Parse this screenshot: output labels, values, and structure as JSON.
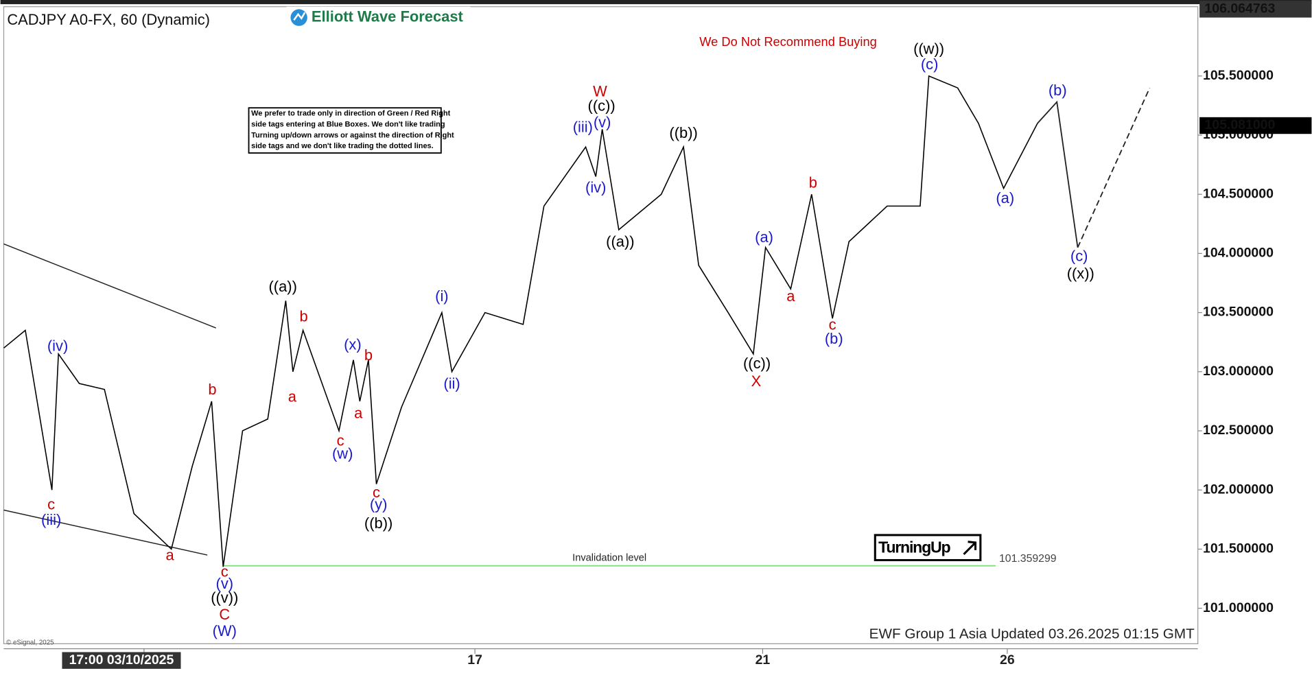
{
  "chart_data": {
    "type": "line",
    "title": "CADJPY A0-FX, 60 (Dynamic)",
    "logo": "Elliott Wave Forecast",
    "warning": "We Do Not Recommend Buying",
    "disclaimer": [
      "We prefer to trade only in direction of Green / Red Right",
      "side tags entering at Blue Boxes. We don't like trading",
      "Turning up/down arrows or against the direction of Right",
      "side tags and we don't like trading the dotted lines."
    ],
    "tag": "TurningUp",
    "footer": "EWF Group 1 Asia Updated 03.26.2025 01:15 GMT",
    "copyright": "© eSignal, 2025",
    "xlim": [
      -1.95,
      14.65
    ],
    "ylim": [
      100.7,
      106.086
    ],
    "xticks": [
      {
        "value": 0,
        "label": "17:00 03/10/2025"
      },
      {
        "value": 4.6,
        "label": "17"
      },
      {
        "value": 8.6,
        "label": "21"
      },
      {
        "value": 12,
        "label": "26"
      }
    ],
    "yticks": [
      {
        "value": 101.0,
        "label": "101.000000"
      },
      {
        "value": 101.5,
        "label": "101.500000"
      },
      {
        "value": 102.0,
        "label": "102.000000"
      },
      {
        "value": 102.5,
        "label": "102.500000"
      },
      {
        "value": 103.0,
        "label": "103.000000"
      },
      {
        "value": 103.5,
        "label": "103.500000"
      },
      {
        "value": 104.0,
        "label": "104.000000"
      },
      {
        "value": 104.5,
        "label": "104.500000"
      },
      {
        "value": 105.0,
        "label": "105.000000"
      },
      {
        "value": 105.5,
        "label": "105.500000"
      }
    ],
    "high_label": 106.064763,
    "last_price": {
      "value": 105.081,
      "label": "105.081000"
    },
    "invalidation": {
      "label": "Invalidation level",
      "value": 101.359299,
      "x": [
        1.1,
        11.84
      ],
      "color": "#7fdc7f"
    },
    "series": [
      {
        "color": "#000000",
        "x": [
          -1.95,
          -1.65,
          -1.28,
          -1.19,
          -0.9,
          -0.55,
          -0.14,
          0.38,
          0.67,
          0.94,
          1.1,
          1.37,
          1.72,
          1.97,
          2.07,
          2.21,
          2.71,
          2.91,
          3.0,
          3.12,
          3.23,
          3.58,
          4.14,
          4.28,
          4.74,
          5.27,
          5.56,
          6.14,
          6.28,
          6.37,
          6.6,
          7.19,
          7.5,
          7.71,
          8.12,
          8.47,
          8.64,
          8.99,
          9.28,
          9.57,
          9.8,
          10.33,
          10.79,
          10.91,
          11.31,
          11.6,
          11.95,
          12.42
        ],
        "values": [
          103.2,
          103.35,
          102.0,
          103.15,
          102.9,
          102.85,
          101.8,
          101.5,
          102.2,
          102.75,
          101.35,
          102.5,
          102.6,
          103.6,
          103.0,
          103.35,
          102.5,
          103.1,
          102.75,
          103.1,
          102.05,
          102.7,
          103.5,
          103.0,
          103.5,
          103.4,
          104.4,
          104.9,
          104.65,
          105.05,
          104.2,
          104.5,
          104.9,
          103.9,
          103.5,
          103.15,
          104.05,
          103.7,
          104.5,
          103.45,
          104.1,
          104.4,
          104.4,
          105.5,
          105.4,
          105.1,
          104.55,
          105.1
        ]
      }
    ],
    "projection": {
      "x": [
        12.42,
        12.69,
        12.98
      ],
      "values": [
        105.1,
        105.28,
        104.05
      ]
    },
    "projection_dashed": {
      "x": [
        12.98,
        13.98
      ],
      "values": [
        104.05,
        105.4
      ]
    },
    "trendlines": [
      {
        "x": [
          -1.95,
          1.0
        ],
        "values": [
          104.08,
          103.37
        ]
      },
      {
        "x": [
          -1.95,
          0.88
        ],
        "values": [
          101.83,
          101.45
        ]
      }
    ],
    "annotations": [
      {
        "text": "(iv)",
        "x": -1.2,
        "y": 103.21,
        "color": "#1a1acc"
      },
      {
        "text": "c",
        "x": -1.29,
        "y": 101.87,
        "color": "#cc0000"
      },
      {
        "text": "(iii)",
        "x": -1.29,
        "y": 101.74,
        "color": "#1a1acc"
      },
      {
        "text": "a",
        "x": 0.36,
        "y": 101.44,
        "color": "#cc0000"
      },
      {
        "text": "b",
        "x": 0.95,
        "y": 102.84,
        "color": "#cc0000"
      },
      {
        "text": "c",
        "x": 1.12,
        "y": 101.3,
        "color": "#cc0000"
      },
      {
        "text": "(v)",
        "x": 1.12,
        "y": 101.2,
        "color": "#1a1acc"
      },
      {
        "text": "((v))",
        "x": 1.12,
        "y": 101.08,
        "color": "#000000"
      },
      {
        "text": "C",
        "x": 1.12,
        "y": 100.94,
        "color": "#cc0000"
      },
      {
        "text": "(W)",
        "x": 1.12,
        "y": 100.8,
        "color": "#1a1acc"
      },
      {
        "text": "((a))",
        "x": 1.93,
        "y": 103.71,
        "color": "#000000"
      },
      {
        "text": "b",
        "x": 2.22,
        "y": 103.46,
        "color": "#cc0000"
      },
      {
        "text": "a",
        "x": 2.06,
        "y": 102.78,
        "color": "#cc0000"
      },
      {
        "text": "c",
        "x": 2.73,
        "y": 102.41,
        "color": "#cc0000"
      },
      {
        "text": "(w)",
        "x": 2.76,
        "y": 102.3,
        "color": "#1a1acc"
      },
      {
        "text": "(x)",
        "x": 2.9,
        "y": 103.22,
        "color": "#1a1acc"
      },
      {
        "text": "b",
        "x": 3.12,
        "y": 103.13,
        "color": "#cc0000"
      },
      {
        "text": "a",
        "x": 2.98,
        "y": 102.64,
        "color": "#cc0000"
      },
      {
        "text": "c",
        "x": 3.23,
        "y": 101.97,
        "color": "#cc0000"
      },
      {
        "text": "(y)",
        "x": 3.26,
        "y": 101.87,
        "color": "#1a1acc"
      },
      {
        "text": "((b))",
        "x": 3.26,
        "y": 101.71,
        "color": "#000000"
      },
      {
        "text": "(i)",
        "x": 4.14,
        "y": 103.63,
        "color": "#1a1acc"
      },
      {
        "text": "(ii)",
        "x": 4.28,
        "y": 102.89,
        "color": "#1a1acc"
      },
      {
        "text": "W",
        "x": 6.34,
        "y": 105.36,
        "color": "#cc0000"
      },
      {
        "text": "((c))",
        "x": 6.36,
        "y": 105.24,
        "color": "#000000"
      },
      {
        "text": "(iii)",
        "x": 6.1,
        "y": 105.06,
        "color": "#1a1acc"
      },
      {
        "text": "(v)",
        "x": 6.37,
        "y": 105.1,
        "color": "#1a1acc"
      },
      {
        "text": "(iv)",
        "x": 6.28,
        "y": 104.55,
        "color": "#1a1acc"
      },
      {
        "text": "((a))",
        "x": 6.62,
        "y": 104.09,
        "color": "#000000"
      },
      {
        "text": "((b))",
        "x": 7.5,
        "y": 105.01,
        "color": "#000000"
      },
      {
        "text": "((c))",
        "x": 8.52,
        "y": 103.06,
        "color": "#000000"
      },
      {
        "text": "X",
        "x": 8.51,
        "y": 102.91,
        "color": "#cc0000"
      },
      {
        "text": "(a)",
        "x": 8.62,
        "y": 104.13,
        "color": "#1a1acc"
      },
      {
        "text": "a",
        "x": 8.99,
        "y": 103.63,
        "color": "#cc0000"
      },
      {
        "text": "b",
        "x": 9.3,
        "y": 104.59,
        "color": "#cc0000"
      },
      {
        "text": "c",
        "x": 9.57,
        "y": 103.39,
        "color": "#cc0000"
      },
      {
        "text": "(b)",
        "x": 9.59,
        "y": 103.27,
        "color": "#1a1acc"
      },
      {
        "text": "((w))",
        "x": 10.91,
        "y": 105.72,
        "color": "#000000"
      },
      {
        "text": "(c)",
        "x": 10.92,
        "y": 105.59,
        "color": "#1a1acc"
      },
      {
        "text": "(a)",
        "x": 11.97,
        "y": 104.46,
        "color": "#1a1acc"
      },
      {
        "text": "(b)",
        "x": 12.7,
        "y": 105.37,
        "color": "#1a1acc"
      },
      {
        "text": "(c)",
        "x": 13.0,
        "y": 103.97,
        "color": "#1a1acc"
      },
      {
        "text": "((x))",
        "x": 13.02,
        "y": 103.82,
        "color": "#000000"
      }
    ]
  }
}
